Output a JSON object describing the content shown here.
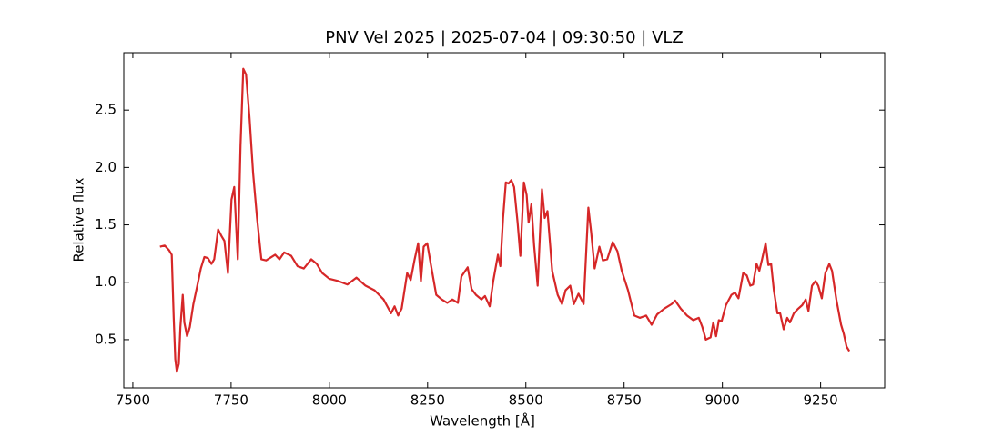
{
  "chart_data": {
    "type": "line",
    "title": "PNV Vel 2025 | 2025-07-04 | 09:30:50 | VLZ",
    "xlabel": "Wavelength [Å]",
    "ylabel": "Relative flux",
    "color": "#d62728",
    "x": [
      7569,
      7581,
      7592,
      7599,
      7604,
      7608,
      7612,
      7617,
      7621,
      7627,
      7631,
      7638,
      7645,
      7654,
      7664,
      7673,
      7682,
      7691,
      7700,
      7707,
      7717,
      7726,
      7733,
      7742,
      7751,
      7758,
      7763,
      7767,
      7774,
      7781,
      7788,
      7797,
      7806,
      7816,
      7827,
      7839,
      7862,
      7873,
      7885,
      7903,
      7919,
      7935,
      7954,
      7968,
      7982,
      8000,
      8023,
      8046,
      8069,
      8092,
      8115,
      8138,
      8157,
      8166,
      8175,
      8184,
      8198,
      8207,
      8217,
      8226,
      8233,
      8240,
      8249,
      8258,
      8272,
      8286,
      8300,
      8313,
      8327,
      8336,
      8346,
      8352,
      8362,
      8373,
      8387,
      8396,
      8408,
      8417,
      8429,
      8435,
      8442,
      8449,
      8456,
      8463,
      8470,
      8479,
      8486,
      8495,
      8502,
      8507,
      8514,
      8521,
      8530,
      8541,
      8548,
      8555,
      8567,
      8581,
      8592,
      8601,
      8613,
      8622,
      8634,
      8647,
      8659,
      8666,
      8675,
      8687,
      8696,
      8707,
      8721,
      8733,
      8744,
      8760,
      8776,
      8790,
      8806,
      8820,
      8834,
      8852,
      8871,
      8880,
      8894,
      8910,
      8926,
      8940,
      8949,
      8958,
      8970,
      8977,
      8984,
      8991,
      8998,
      9009,
      9023,
      9032,
      9041,
      9053,
      9062,
      9071,
      9078,
      9087,
      9094,
      9101,
      9110,
      9117,
      9124,
      9131,
      9140,
      9147,
      9156,
      9165,
      9172,
      9182,
      9193,
      9203,
      9212,
      9219,
      9228,
      9237,
      9244,
      9253,
      9262,
      9272,
      9279,
      9290,
      9302,
      9309,
      9316,
      9323
    ],
    "values": [
      1.31,
      1.32,
      1.28,
      1.24,
      0.69,
      0.33,
      0.22,
      0.29,
      0.61,
      0.89,
      0.65,
      0.53,
      0.61,
      0.81,
      0.97,
      1.12,
      1.22,
      1.21,
      1.16,
      1.2,
      1.46,
      1.4,
      1.36,
      1.08,
      1.72,
      1.83,
      1.48,
      1.2,
      2.19,
      2.86,
      2.81,
      2.43,
      1.95,
      1.56,
      1.2,
      1.19,
      1.24,
      1.2,
      1.26,
      1.23,
      1.14,
      1.12,
      1.2,
      1.16,
      1.08,
      1.03,
      1.01,
      0.98,
      1.04,
      0.97,
      0.93,
      0.85,
      0.73,
      0.79,
      0.71,
      0.77,
      1.08,
      1.02,
      1.2,
      1.34,
      1.01,
      1.31,
      1.34,
      1.16,
      0.89,
      0.85,
      0.82,
      0.85,
      0.82,
      1.05,
      1.1,
      1.13,
      0.94,
      0.89,
      0.85,
      0.88,
      0.79,
      1.01,
      1.24,
      1.14,
      1.56,
      1.87,
      1.86,
      1.89,
      1.83,
      1.52,
      1.23,
      1.87,
      1.76,
      1.52,
      1.68,
      1.32,
      0.97,
      1.81,
      1.56,
      1.62,
      1.1,
      0.89,
      0.81,
      0.93,
      0.97,
      0.81,
      0.9,
      0.81,
      1.65,
      1.44,
      1.12,
      1.31,
      1.19,
      1.2,
      1.35,
      1.27,
      1.1,
      0.93,
      0.71,
      0.69,
      0.71,
      0.63,
      0.72,
      0.77,
      0.81,
      0.84,
      0.77,
      0.71,
      0.67,
      0.69,
      0.61,
      0.5,
      0.52,
      0.65,
      0.53,
      0.67,
      0.66,
      0.8,
      0.89,
      0.91,
      0.86,
      1.08,
      1.06,
      0.97,
      0.98,
      1.16,
      1.1,
      1.2,
      1.34,
      1.15,
      1.16,
      0.93,
      0.73,
      0.73,
      0.59,
      0.69,
      0.65,
      0.73,
      0.77,
      0.8,
      0.85,
      0.75,
      0.97,
      1.01,
      0.97,
      0.86,
      1.08,
      1.16,
      1.1,
      0.85,
      0.63,
      0.55,
      0.44,
      0.4
    ],
    "xlim": [
      7477,
      9413
    ],
    "ylim": [
      0.08,
      3.0
    ],
    "xticks": [
      7500,
      7750,
      8000,
      8250,
      8500,
      8750,
      9000,
      9250
    ],
    "yticks": [
      0.5,
      {
        "value": 1,
        "label": "1.0"
      },
      1.5,
      {
        "value": 2,
        "label": "2.0"
      },
      2.5
    ]
  }
}
